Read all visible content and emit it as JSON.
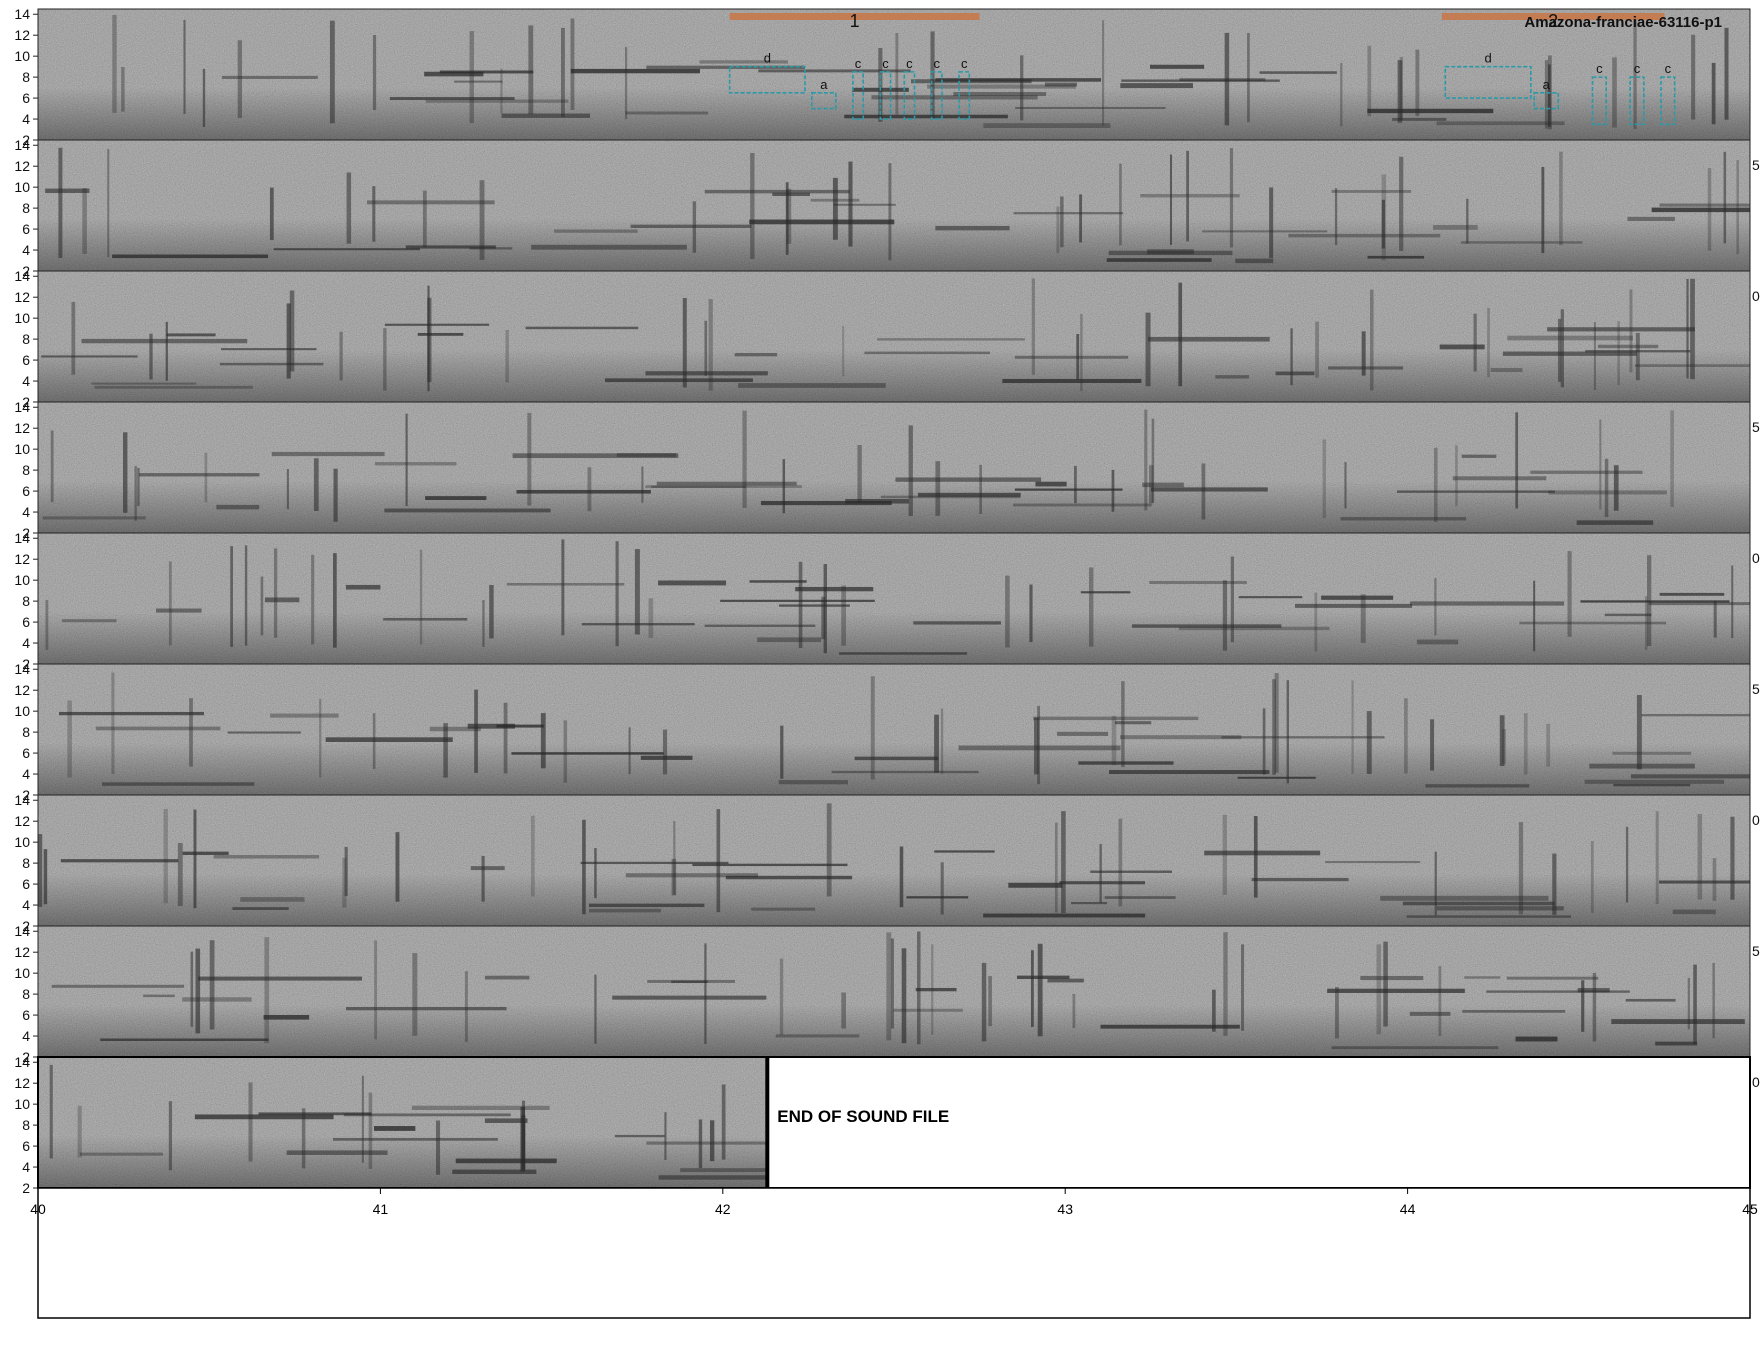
{
  "chart_data": {
    "type": "spectrogram",
    "title": "Amazona-franciae-63116-p1",
    "ylim": [
      2,
      14.5
    ],
    "yticks": [
      "2",
      "4",
      "6",
      "8",
      "10",
      "12",
      "14"
    ],
    "xlim": [
      40,
      45
    ],
    "xticks": [
      "40",
      "41",
      "42",
      "43",
      "44",
      "45"
    ],
    "end_label": "END OF SOUND FILE",
    "end_at_x": 42.13,
    "rows": [
      {
        "data_end": 1.0,
        "right_label": ""
      },
      {
        "data_end": 1.0,
        "right_label": "5"
      },
      {
        "data_end": 1.0,
        "right_label": "0"
      },
      {
        "data_end": 1.0,
        "right_label": "5"
      },
      {
        "data_end": 1.0,
        "right_label": "0"
      },
      {
        "data_end": 1.0,
        "right_label": "5"
      },
      {
        "data_end": 1.0,
        "right_label": "0"
      },
      {
        "data_end": 1.0,
        "right_label": "5"
      },
      {
        "data_end": 0.427,
        "right_label": "0"
      }
    ],
    "phrases": [
      {
        "label": "1",
        "start": 42.02,
        "end": 42.75
      },
      {
        "label": "2",
        "start": 44.1,
        "end": 44.75
      }
    ],
    "syllables": [
      {
        "label": "d",
        "t0": 42.02,
        "t1": 42.24,
        "f0": 6.5,
        "f1": 9.0
      },
      {
        "label": "a",
        "t0": 42.26,
        "t1": 42.33,
        "f0": 5.0,
        "f1": 6.5
      },
      {
        "label": "c",
        "t0": 42.38,
        "t1": 42.41,
        "f0": 4.0,
        "f1": 8.5
      },
      {
        "label": "c",
        "t0": 42.46,
        "t1": 42.49,
        "f0": 4.0,
        "f1": 8.5
      },
      {
        "label": "c",
        "t0": 42.53,
        "t1": 42.56,
        "f0": 4.0,
        "f1": 8.5
      },
      {
        "label": "c",
        "t0": 42.61,
        "t1": 42.64,
        "f0": 4.0,
        "f1": 8.5
      },
      {
        "label": "c",
        "t0": 42.69,
        "t1": 42.72,
        "f0": 4.0,
        "f1": 8.5
      },
      {
        "label": "d",
        "t0": 44.11,
        "t1": 44.36,
        "f0": 6.0,
        "f1": 9.0
      },
      {
        "label": "a",
        "t0": 44.37,
        "t1": 44.44,
        "f0": 5.0,
        "f1": 6.5
      },
      {
        "label": "c",
        "t0": 44.54,
        "t1": 44.58,
        "f0": 3.5,
        "f1": 8.0
      },
      {
        "label": "c",
        "t0": 44.65,
        "t1": 44.69,
        "f0": 3.5,
        "f1": 8.0
      },
      {
        "label": "c",
        "t0": 44.74,
        "t1": 44.78,
        "f0": 3.5,
        "f1": 8.0
      }
    ],
    "colors": {
      "phrase_bar": "#c8784a",
      "syllable_box": "#2a9aa8",
      "spectrogram_bg": "#8a8a8a",
      "spectrogram_dark": "#2a2a2a"
    }
  }
}
